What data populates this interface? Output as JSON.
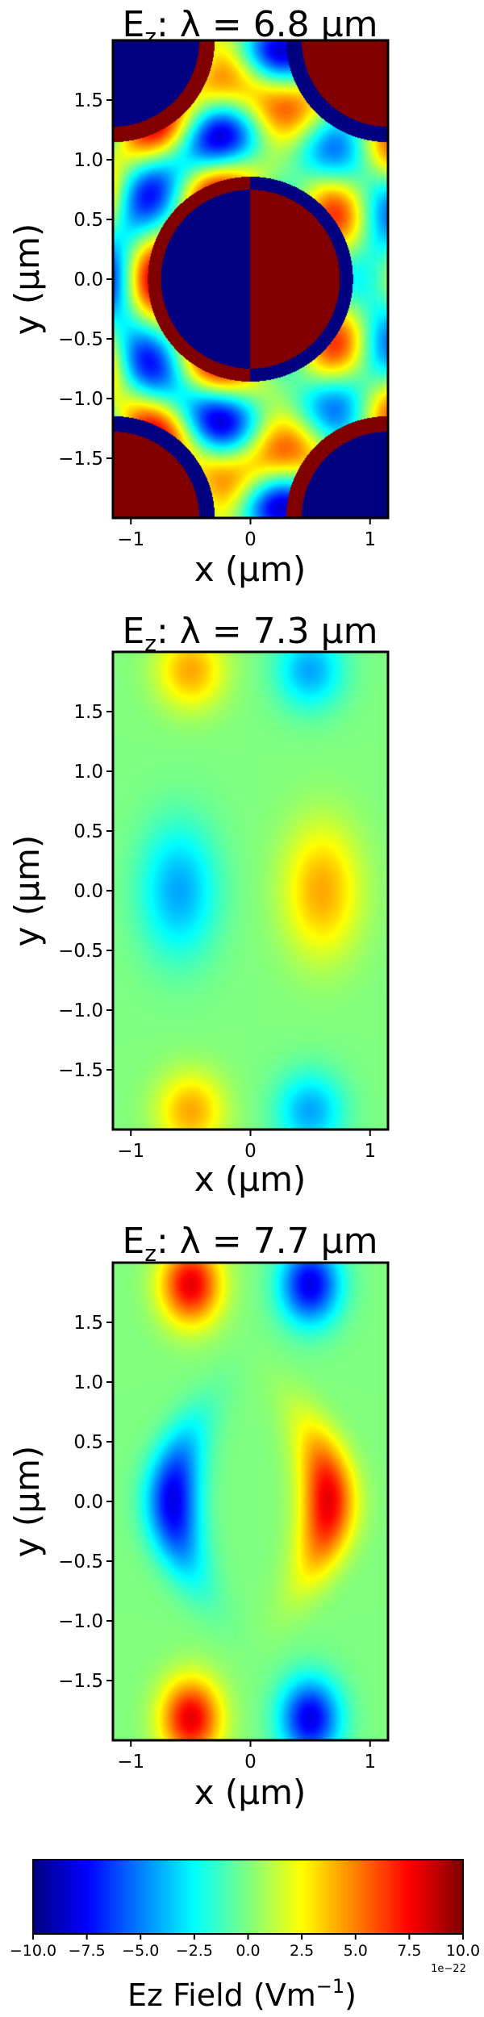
{
  "chart_data": [
    {
      "type": "heatmap",
      "title": "E",
      "title_sub": "z",
      "title_rest": ":  λ = 6.8 μm",
      "xlabel": "x (μm)",
      "ylabel": "y (μm)",
      "xlim": [
        -1.15,
        1.15
      ],
      "ylim": [
        -2.0,
        2.0
      ],
      "xticks": [
        -1,
        0,
        1
      ],
      "xtick_labels": [
        "−1",
        "0",
        "1"
      ],
      "yticks": [
        1.5,
        1.0,
        0.5,
        0.0,
        -0.5,
        -1.0,
        -1.5
      ],
      "ytick_labels": [
        "1.5",
        "1.0",
        "0.5",
        "0.0",
        "−0.5",
        "−1.0",
        "−1.5"
      ],
      "pattern": "ring-resonance",
      "amplitude_range": [
        -10,
        10
      ]
    },
    {
      "type": "heatmap",
      "title": "E",
      "title_sub": "z",
      "title_rest": ":  λ = 7.3 μm",
      "xlabel": "x (μm)",
      "ylabel": "y (μm)",
      "xlim": [
        -1.15,
        1.15
      ],
      "ylim": [
        -2.0,
        2.0
      ],
      "xticks": [
        -1,
        0,
        1
      ],
      "xtick_labels": [
        "−1",
        "0",
        "1"
      ],
      "yticks": [
        1.5,
        1.0,
        0.5,
        0.0,
        -0.5,
        -1.0,
        -1.5
      ],
      "ytick_labels": [
        "1.5",
        "1.0",
        "0.5",
        "0.0",
        "−0.5",
        "−1.0",
        "−1.5"
      ],
      "pattern": "weak-dipole",
      "amplitude_range": [
        -10,
        10
      ]
    },
    {
      "type": "heatmap",
      "title": "E",
      "title_sub": "z",
      "title_rest": ":  λ = 7.7 μm",
      "xlabel": "x (μm)",
      "ylabel": "y (μm)",
      "xlim": [
        -1.15,
        1.15
      ],
      "ylim": [
        -2.0,
        2.0
      ],
      "xticks": [
        -1,
        0,
        1
      ],
      "xtick_labels": [
        "−1",
        "0",
        "1"
      ],
      "yticks": [
        1.5,
        1.0,
        0.5,
        0.0,
        -0.5,
        -1.0,
        -1.5
      ],
      "ytick_labels": [
        "1.5",
        "1.0",
        "0.5",
        "0.0",
        "−0.5",
        "−1.0",
        "−1.5"
      ],
      "pattern": "crescent-dipole",
      "amplitude_range": [
        -10,
        10
      ]
    }
  ],
  "colorbar": {
    "colormap": "jet",
    "range": [
      -10.0,
      10.0
    ],
    "ticks": [
      -10.0,
      -7.5,
      -5.0,
      -2.5,
      0.0,
      2.5,
      5.0,
      7.5,
      10.0
    ],
    "tick_labels": [
      "−10.0",
      "−7.5",
      "−5.0",
      "−2.5",
      "0.0",
      "2.5",
      "5.0",
      "7.5",
      "10.0"
    ],
    "label_main": "Ez  Field (Vm",
    "label_sup": "−1",
    "label_end": ")",
    "scale": "1e−22"
  }
}
